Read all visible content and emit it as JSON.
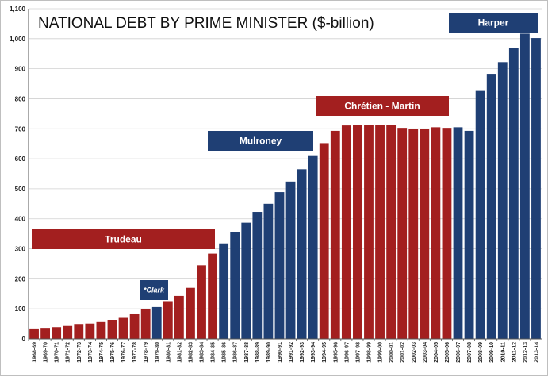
{
  "chart_data": {
    "type": "bar",
    "title": "NATIONAL DEBT BY PRIME MINISTER ($-billion)",
    "xlabel": "",
    "ylabel": "",
    "ylim": [
      0,
      1100
    ],
    "yticks": [
      0,
      100,
      200,
      300,
      400,
      500,
      600,
      700,
      800,
      900,
      "1,000",
      "1,100"
    ],
    "grid": true,
    "categories": [
      "1968-69",
      "1969-70",
      "1970-71",
      "1971-72",
      "1972-73",
      "1973-74",
      "1974-75",
      "1975-76",
      "1976-77",
      "1977-78",
      "1978-79",
      "1979-80",
      "1980-81",
      "1981-82",
      "1982-83",
      "1983-84",
      "1984-85",
      "1985-86",
      "1986-87",
      "1987-88",
      "1988-89",
      "1989-90",
      "1990-91",
      "1991-92",
      "1992-93",
      "1993-94",
      "1994-95",
      "1995-96",
      "1996-97",
      "1997-98",
      "1998-99",
      "1999-00",
      "2000-01",
      "2001-02",
      "2002-03",
      "2003-04",
      "2004-05",
      "2005-06",
      "2006-07",
      "2007-08",
      "2008-09",
      "2009-10",
      "2010-11",
      "2011-12",
      "2012-13",
      "2013-14"
    ],
    "values": [
      32,
      34,
      39,
      43,
      47,
      51,
      56,
      62,
      70,
      82,
      100,
      106,
      123,
      143,
      170,
      245,
      284,
      318,
      356,
      387,
      423,
      450,
      489,
      524,
      565,
      609,
      652,
      693,
      711,
      712,
      713,
      713,
      713,
      703,
      700,
      700,
      705,
      703,
      705,
      693,
      826,
      883,
      922,
      970,
      1017,
      1002
    ],
    "pm_segments": [
      {
        "name": "Trudeau",
        "start": 0,
        "end": 10,
        "color": "#a31f1f"
      },
      {
        "name": "*Clark",
        "start": 11,
        "end": 11,
        "color": "#1f3f74"
      },
      {
        "name": "Trudeau",
        "start": 12,
        "end": 16,
        "color": "#a31f1f"
      },
      {
        "name": "Mulroney",
        "start": 17,
        "end": 25,
        "color": "#1f3f74"
      },
      {
        "name": "Chrétien - Martin",
        "start": 26,
        "end": 37,
        "color": "#a31f1f"
      },
      {
        "name": "Harper",
        "start": 38,
        "end": 45,
        "color": "#1f3f74"
      }
    ],
    "labels": [
      {
        "text": "Trudeau",
        "color": "#a31f1f",
        "small": false
      },
      {
        "text": "*Clark",
        "color": "#1f3f74",
        "small": true
      },
      {
        "text": "Mulroney",
        "color": "#1f3f74",
        "small": false
      },
      {
        "text": "Chrétien - Martin",
        "color": "#a31f1f",
        "small": false
      },
      {
        "text": "Harper",
        "color": "#1f3f74",
        "small": false
      }
    ]
  }
}
